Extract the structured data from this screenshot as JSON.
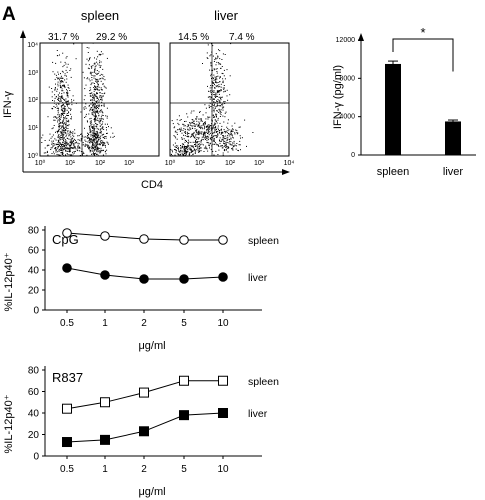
{
  "panels": {
    "a": "A",
    "b": "B"
  },
  "flow": {
    "ylabel": "IFN-γ",
    "xlabel": "CD4",
    "y_tick_labels": [
      "10⁰",
      "10¹",
      "10²",
      "10³",
      "10⁴"
    ],
    "x_tick_labels": [
      "10⁰",
      "10¹",
      "10²",
      "10³",
      "10⁴"
    ],
    "plots": [
      {
        "title": "spleen",
        "q_left": "31.7 %",
        "q_right": "29.2 %"
      },
      {
        "title": "liver",
        "q_left": "14.5 %",
        "q_right": "7.4 %"
      }
    ]
  },
  "chart_data": [
    {
      "type": "bar",
      "categories": [
        "spleen",
        "liver"
      ],
      "values": [
        9500,
        3500
      ],
      "errors": [
        300,
        150
      ],
      "ylabel": "IFN-γ (pg/ml)",
      "ylim": [
        0,
        12000
      ],
      "yticks": [
        0,
        4000,
        8000,
        12000
      ],
      "annotation": "*",
      "bar_color": "#000000"
    },
    {
      "type": "line",
      "title": "CpG",
      "x": [
        "0.5",
        "1",
        "2",
        "5",
        "10"
      ],
      "xlabel": "μg/ml",
      "ylabel": "%IL-12p40⁺",
      "ylim": [
        0,
        80
      ],
      "yticks": [
        0,
        20,
        40,
        60,
        80
      ],
      "marker": "circle",
      "series": [
        {
          "name": "spleen",
          "values": [
            77,
            74,
            71,
            70,
            70
          ],
          "fill": "#ffffff"
        },
        {
          "name": "liver",
          "values": [
            42,
            35,
            31,
            31,
            33
          ],
          "fill": "#000000"
        }
      ]
    },
    {
      "type": "line",
      "title": "R837",
      "x": [
        "0.5",
        "1",
        "2",
        "5",
        "10"
      ],
      "xlabel": "μg/ml",
      "ylabel": "%IL-12p40⁺",
      "ylim": [
        0,
        80
      ],
      "yticks": [
        0,
        20,
        40,
        60,
        80
      ],
      "marker": "square",
      "series": [
        {
          "name": "spleen",
          "values": [
            44,
            50,
            59,
            70,
            70
          ],
          "fill": "#ffffff"
        },
        {
          "name": "liver",
          "values": [
            13,
            15,
            23,
            38,
            40
          ],
          "fill": "#000000"
        }
      ]
    }
  ]
}
